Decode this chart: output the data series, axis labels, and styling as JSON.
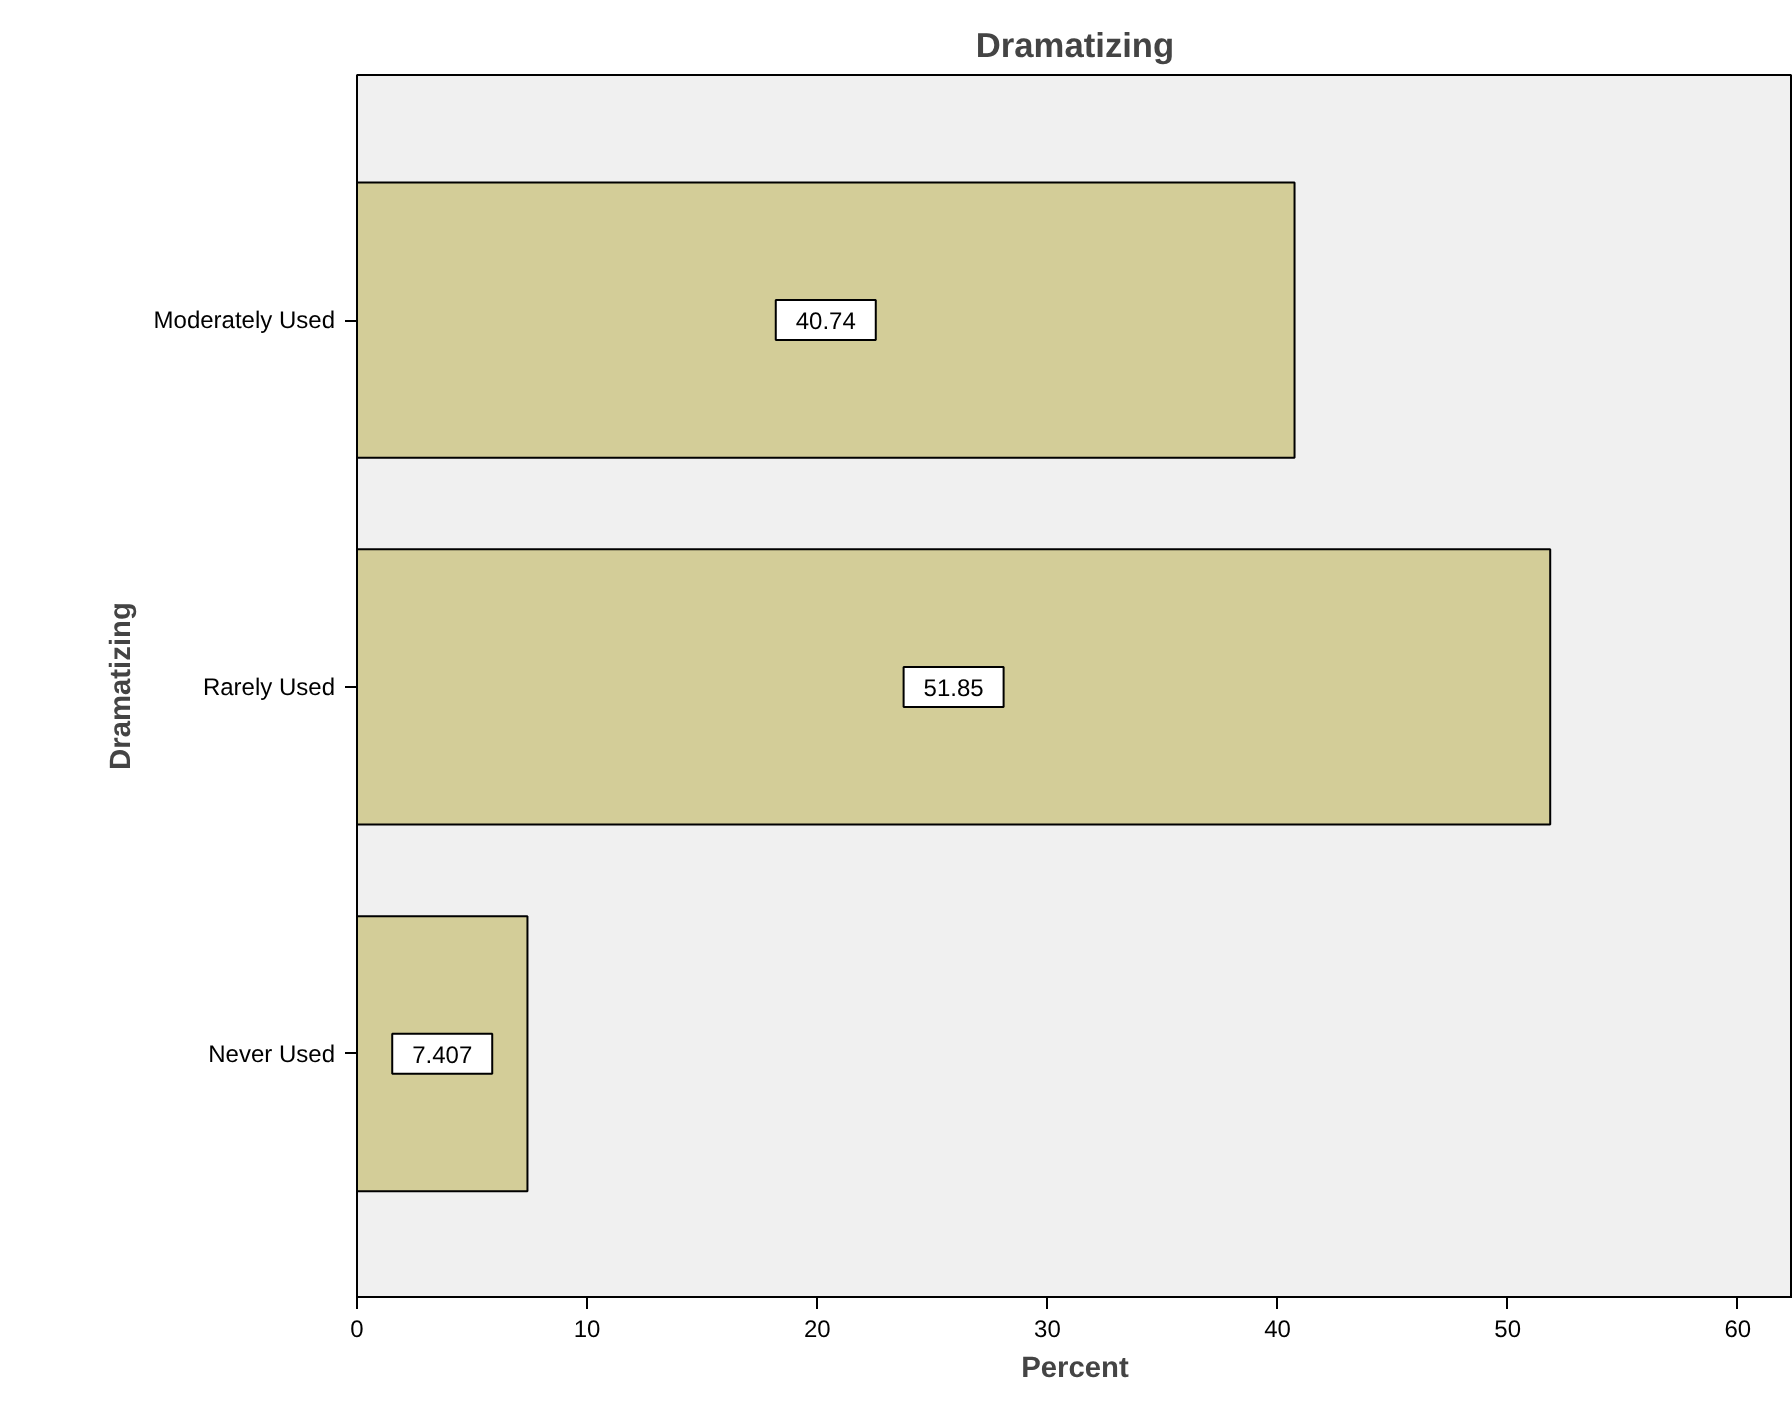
{
  "chart_data": {
    "type": "bar",
    "orientation": "horizontal",
    "title": "Dramatizing",
    "xlabel": "Percent",
    "ylabel": "Dramatizing",
    "categories": [
      "Moderately Used",
      "Rarely Used",
      "Never Used"
    ],
    "values": [
      40.74,
      51.85,
      7.407
    ],
    "color": "#d3cd98",
    "xlim": [
      0,
      62.4
    ],
    "xticks": [
      0,
      10,
      20,
      30,
      40,
      50,
      60
    ],
    "grid": false,
    "data_labels": true
  }
}
